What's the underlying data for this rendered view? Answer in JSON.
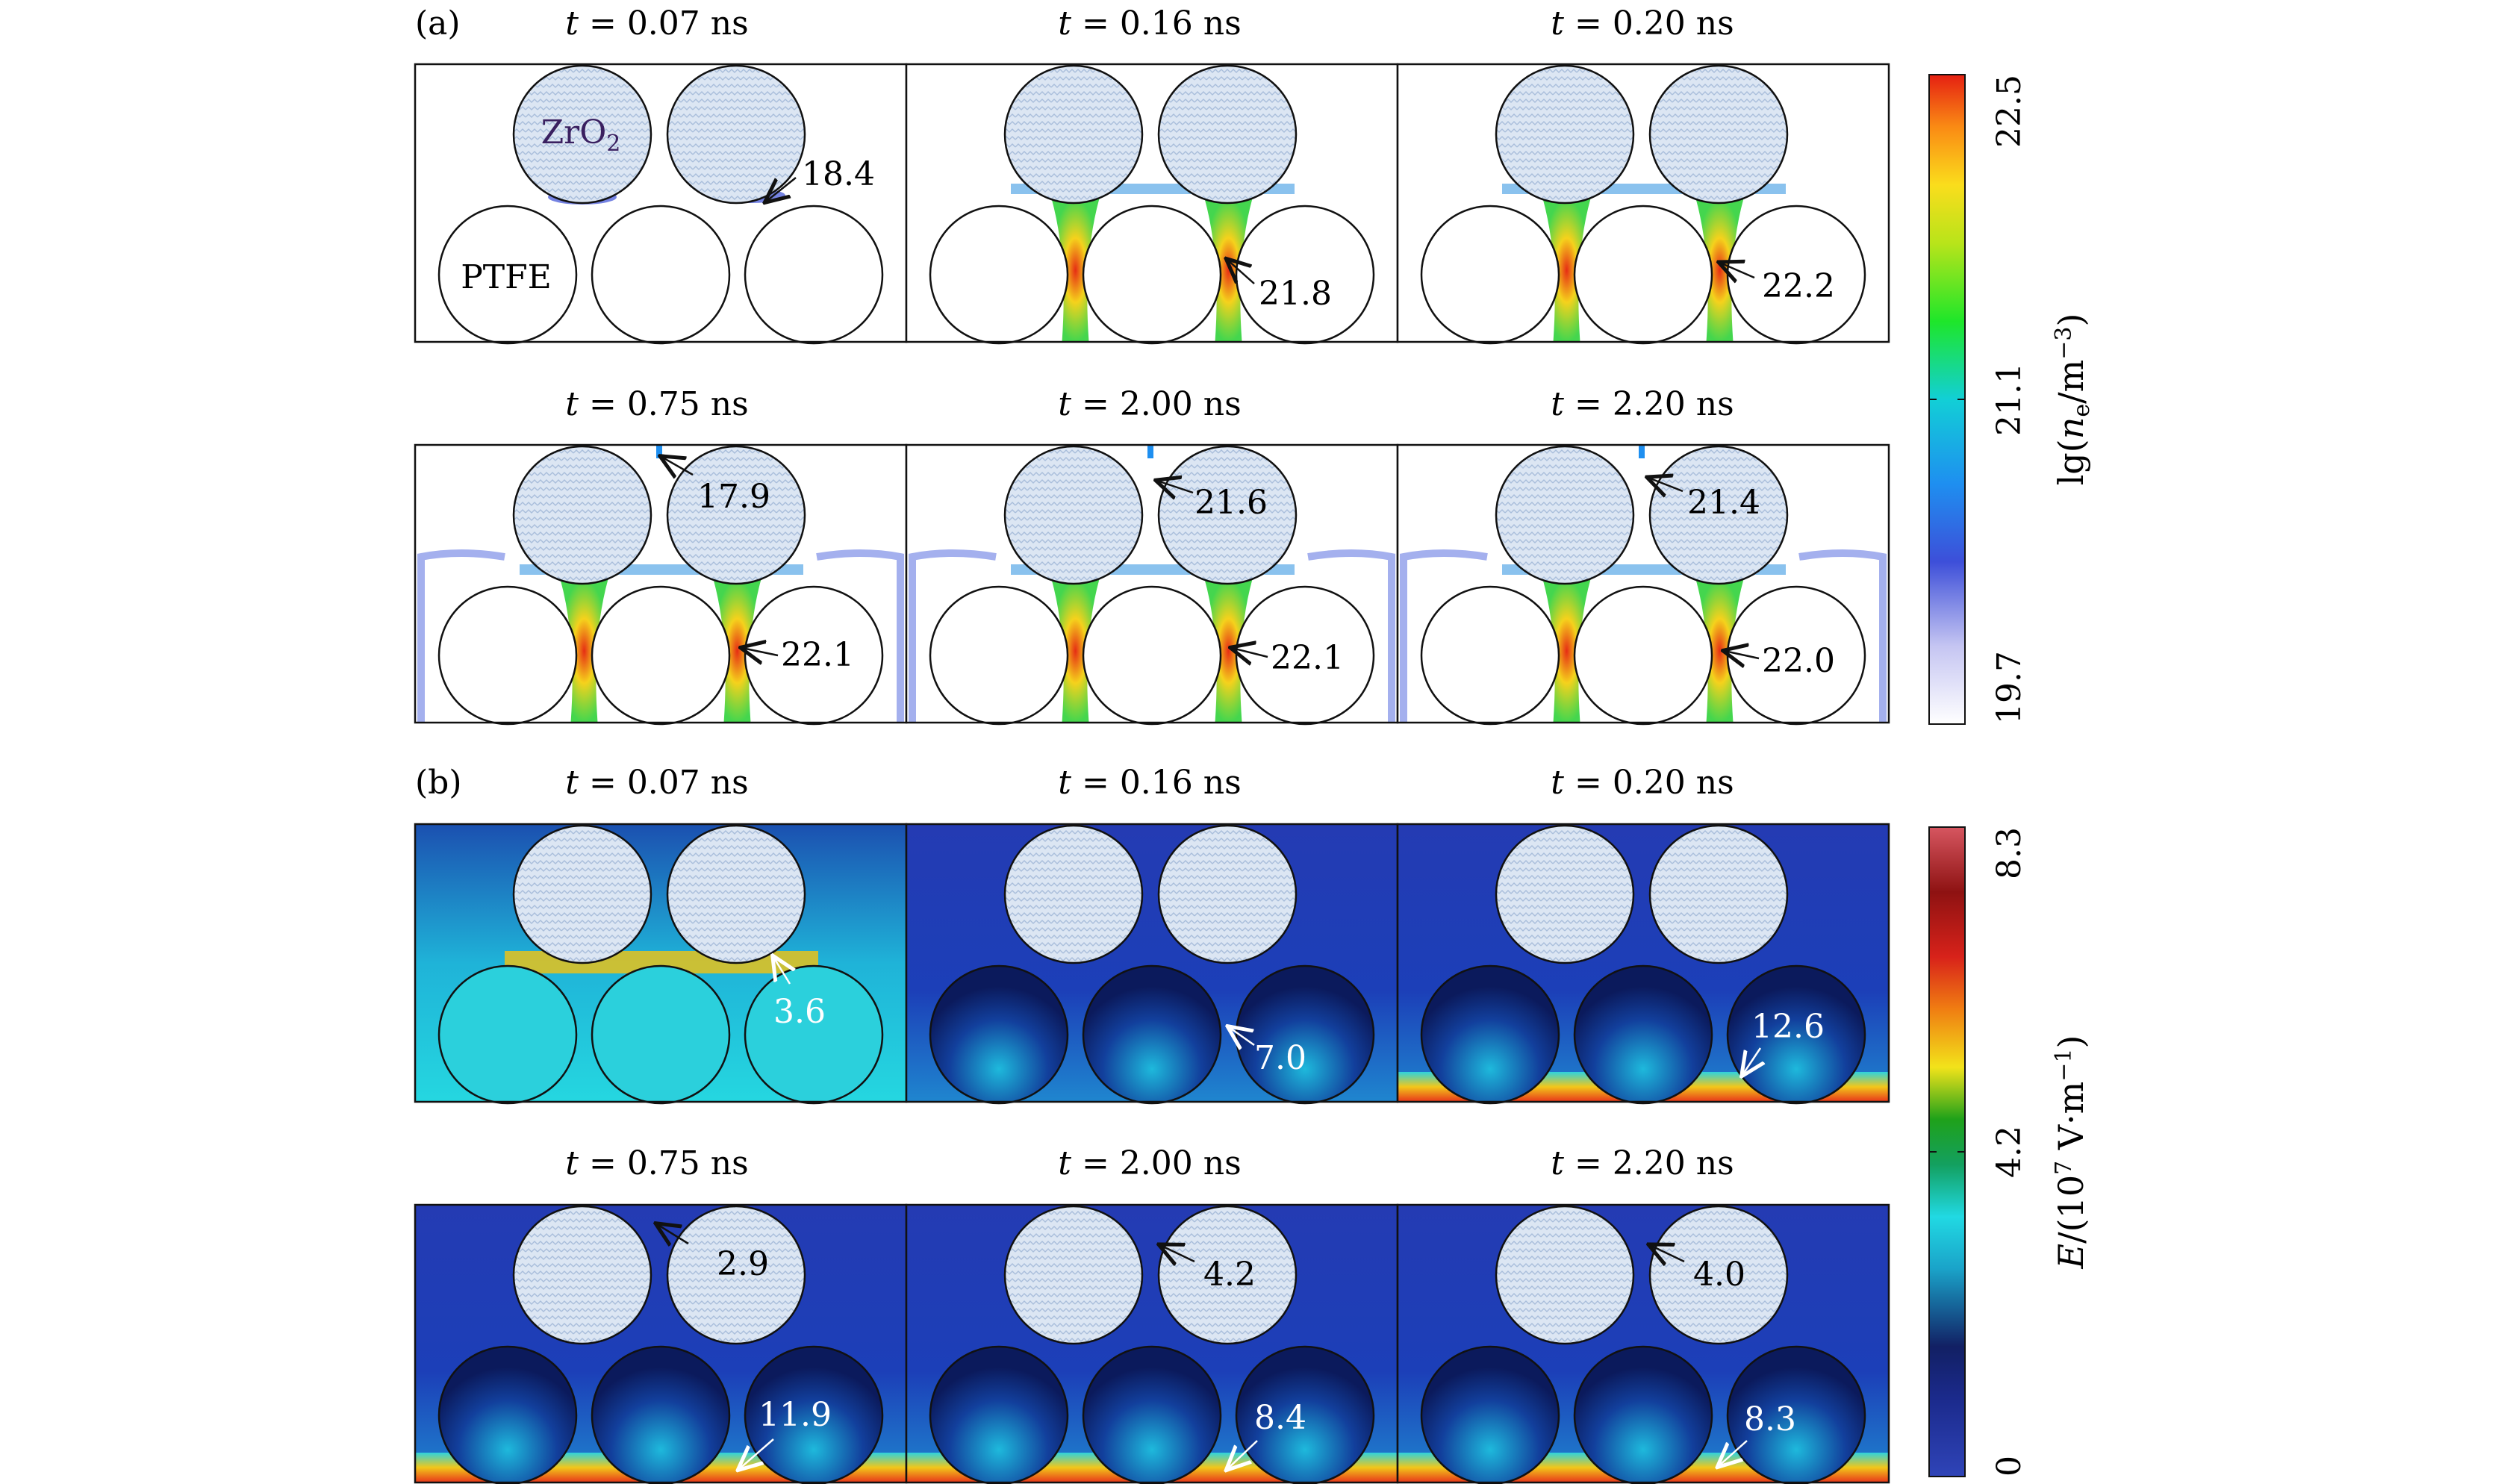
{
  "figure": {
    "panel_a_label": "(a)",
    "panel_b_label": "(b)",
    "material_labels": {
      "zro2": "ZrO",
      "zro2_sub": "2",
      "ptfe": "PTFE"
    },
    "time_unit": "ns",
    "times": [
      "0.07",
      "0.16",
      "0.20",
      "0.75",
      "2.00",
      "2.20"
    ]
  },
  "panel_a": {
    "quantity": "electron density",
    "colorbar": {
      "label": "lg(n_e/m^-3)",
      "label_parts": {
        "pre": "lg(",
        "var": "n",
        "sub": "e",
        "mid": "/m",
        "sup": "−3",
        "post": ")"
      },
      "ticks": [
        "22.5",
        "21.1",
        "19.7"
      ],
      "range": [
        19.7,
        22.5
      ]
    },
    "annotations": [
      "18.4",
      "21.8",
      "22.2",
      "17.9",
      "21.6",
      "21.4",
      "22.1",
      "22.1",
      "22.0"
    ]
  },
  "panel_b": {
    "quantity": "electric field",
    "colorbar": {
      "label": "E/(10^7 V·m^-1)",
      "label_parts": {
        "var": "E",
        "pre": "/(10",
        "sup1": "7",
        "mid": " V·m",
        "sup2": "−1",
        "post": ")"
      },
      "ticks": [
        "8.3",
        "4.2",
        "0"
      ],
      "range": [
        0,
        8.3
      ]
    },
    "annotations": [
      "3.6",
      "7.0",
      "12.6",
      "2.9",
      "4.2",
      "4.0",
      "11.9",
      "8.4",
      "8.3"
    ]
  }
}
